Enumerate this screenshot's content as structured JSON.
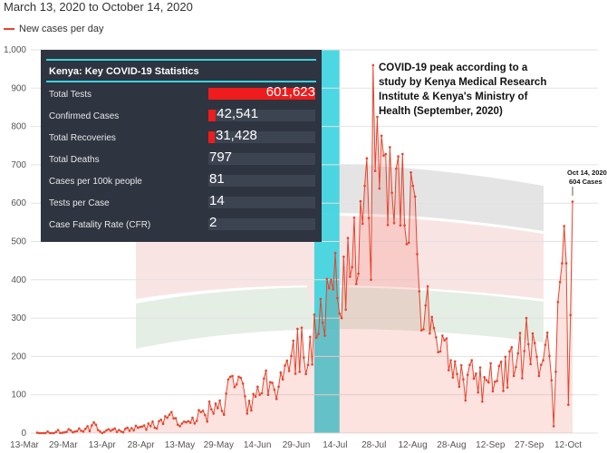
{
  "chart_data": {
    "type": "line",
    "subtitle": "March 13, 2020 to October 14, 2020",
    "series": [
      {
        "name": "New cases per day",
        "color": "#e8432c",
        "values": [
          1,
          0,
          0,
          0,
          0,
          4,
          0,
          0,
          0,
          3,
          8,
          0,
          1,
          2,
          3,
          10,
          7,
          2,
          4,
          5,
          12,
          6,
          4,
          11,
          18,
          5,
          20,
          28,
          22,
          8,
          4,
          0,
          3,
          7,
          10,
          6,
          9,
          12,
          3,
          8,
          4,
          2,
          11,
          14,
          6,
          13,
          7,
          19,
          14,
          16,
          17,
          20,
          9,
          25,
          18,
          30,
          14,
          12,
          31,
          35,
          24,
          44,
          40,
          48,
          55,
          38,
          39,
          22,
          18,
          25,
          30,
          28,
          31,
          27,
          40,
          25,
          32,
          60,
          55,
          58,
          47,
          30,
          82,
          62,
          51,
          77,
          65,
          85,
          58,
          48,
          103,
          140,
          147,
          149,
          120,
          127,
          147,
          144,
          129,
          96,
          51,
          84,
          59,
          102,
          95,
          121,
          100,
          104,
          142,
          163,
          100,
          133,
          131,
          113,
          89,
          121,
          158,
          140,
          176,
          189,
          162,
          201,
          241,
          155,
          272,
          160,
          275,
          197,
          154,
          178,
          251,
          179,
          309,
          249,
          259,
          350,
          288,
          254,
          402,
          378,
          400,
          375,
          470,
          352,
          312,
          300,
          460,
          322,
          509,
          408,
          433,
          562,
          389,
          416,
          605,
          546,
          645,
          717,
          561,
          400,
          960,
          684,
          825,
          638,
          776,
          724,
          728,
          543,
          746,
          627,
          548,
          690,
          722,
          542,
          728,
          542,
          493,
          497,
          680,
          645,
          617,
          467,
          370,
          268,
          271,
          333,
          383,
          260,
          303,
          274,
          250,
          211,
          213,
          254,
          242,
          247,
          164,
          190,
          145,
          187,
          154,
          121,
          177,
          140,
          85,
          152,
          178,
          190,
          142,
          155,
          106,
          171,
          82,
          146,
          138,
          132,
          182,
          109,
          134,
          136,
          175,
          186,
          110,
          199,
          119,
          213,
          224,
          149,
          172,
          208,
          261,
          143,
          214,
          300,
          232,
          180,
          260,
          235,
          199,
          149,
          178,
          190,
          230,
          262,
          201,
          138,
          18,
          160,
          342,
          394,
          443,
          540,
          443,
          74,
          308,
          604
        ]
      }
    ],
    "x_dates": "2020-03-13 to 2020-10-14 (one value per day)",
    "xtick_labels": [
      "13-Mar",
      "29-Mar",
      "13-Apr",
      "28-Apr",
      "13-May",
      "29-May",
      "14-Jun",
      "29-Jun",
      "14-Jul",
      "28-Jul",
      "12-Aug",
      "28-Aug",
      "12-Sep",
      "27-Sep",
      "12-Oct"
    ],
    "yticks": [
      0,
      100,
      200,
      300,
      400,
      500,
      600,
      700,
      800,
      900,
      1000
    ],
    "ytick_labels": [
      "0",
      "100",
      "200",
      "300",
      "400",
      "500",
      "600",
      "700",
      "800",
      "900",
      "1,000"
    ],
    "ylim": [
      0,
      1000
    ],
    "grid": "horizontal",
    "legend_position": "top-left",
    "highlight_band": {
      "from": "2020-07-23",
      "to": "2020-08-04",
      "color": "#3ad3df"
    },
    "annotations": {
      "peak_note": [
        "COVID-19 peak according to a",
        "study by Kenya Medical Research",
        "Institute & Kenya's Ministry of",
        "Health (September, 2020)"
      ],
      "last_point": [
        "Oct 14, 2020",
        "604 Cases"
      ]
    },
    "stats_table": {
      "title": "Kenya: Key COVID-19 Statistics",
      "rows": [
        {
          "label": "Total Tests",
          "display": "601,623",
          "bar_fraction": 1.0
        },
        {
          "label": "Confirmed Cases",
          "display": "42,541",
          "bar_fraction": 0.07
        },
        {
          "label": "Total Recoveries",
          "display": "31,428",
          "bar_fraction": 0.052
        },
        {
          "label": "Total Deaths",
          "display": "797",
          "bar_fraction": 0
        },
        {
          "label": "Cases per 100k people",
          "display": "81",
          "bar_fraction": 0
        },
        {
          "label": "Tests per Case",
          "display": "14",
          "bar_fraction": 0
        },
        {
          "label": "Case Fatality Rate (CFR)",
          "display": "2",
          "bar_fraction": 0
        }
      ]
    }
  }
}
